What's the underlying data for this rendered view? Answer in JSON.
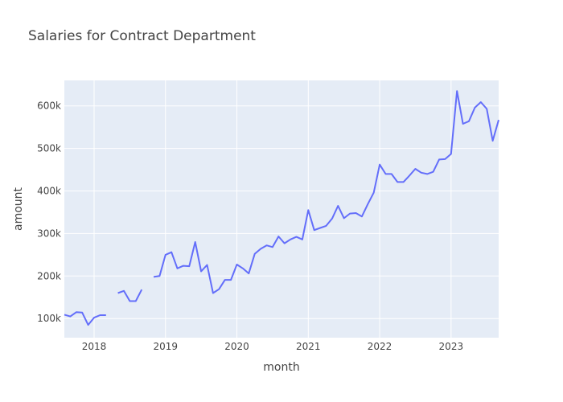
{
  "chart_data": {
    "type": "line",
    "title": "Salaries for Contract Department",
    "xlabel": "month",
    "ylabel": "amount",
    "xlim": [
      "2017-08",
      "2023-09"
    ],
    "ylim": [
      55000,
      660000
    ],
    "yticks": [
      {
        "value": 100000,
        "label": "100k"
      },
      {
        "value": 200000,
        "label": "200k"
      },
      {
        "value": 300000,
        "label": "300k"
      },
      {
        "value": 400000,
        "label": "400k"
      },
      {
        "value": 500000,
        "label": "500k"
      },
      {
        "value": 600000,
        "label": "600k"
      }
    ],
    "xticks": [
      {
        "value": "2018-01",
        "label": "2018"
      },
      {
        "value": "2019-01",
        "label": "2019"
      },
      {
        "value": "2020-01",
        "label": "2020"
      },
      {
        "value": "2021-01",
        "label": "2021"
      },
      {
        "value": "2022-01",
        "label": "2022"
      },
      {
        "value": "2023-01",
        "label": "2023"
      }
    ],
    "grid": true,
    "series": [
      {
        "color": "#636efa",
        "points": [
          [
            "2017-08",
            109000
          ],
          [
            "2017-09",
            105000
          ],
          [
            "2017-10",
            115000
          ],
          [
            "2017-11",
            114000
          ],
          [
            "2017-12",
            85000
          ],
          [
            "2018-01",
            102000
          ],
          [
            "2018-02",
            108000
          ],
          [
            "2018-03",
            108000
          ],
          [
            "2018-04",
            null
          ],
          [
            "2018-05",
            160000
          ],
          [
            "2018-06",
            165000
          ],
          [
            "2018-07",
            141000
          ],
          [
            "2018-08",
            141000
          ],
          [
            "2018-09",
            168000
          ],
          [
            "2018-10",
            null
          ],
          [
            "2018-11",
            198000
          ],
          [
            "2018-12",
            200000
          ],
          [
            "2019-01",
            250000
          ],
          [
            "2019-02",
            256000
          ],
          [
            "2019-03",
            218000
          ],
          [
            "2019-04",
            224000
          ],
          [
            "2019-05",
            223000
          ],
          [
            "2019-06",
            280000
          ],
          [
            "2019-07",
            211000
          ],
          [
            "2019-08",
            226000
          ],
          [
            "2019-09",
            160000
          ],
          [
            "2019-10",
            169000
          ],
          [
            "2019-11",
            191000
          ],
          [
            "2019-12",
            191000
          ],
          [
            "2020-01",
            227000
          ],
          [
            "2020-02",
            218000
          ],
          [
            "2020-03",
            206000
          ],
          [
            "2020-04",
            252000
          ],
          [
            "2020-05",
            264000
          ],
          [
            "2020-06",
            272000
          ],
          [
            "2020-07",
            268000
          ],
          [
            "2020-08",
            293000
          ],
          [
            "2020-09",
            277000
          ],
          [
            "2020-10",
            286000
          ],
          [
            "2020-11",
            292000
          ],
          [
            "2020-12",
            286000
          ],
          [
            "2021-01",
            355000
          ],
          [
            "2021-02",
            308000
          ],
          [
            "2021-03",
            313000
          ],
          [
            "2021-04",
            318000
          ],
          [
            "2021-05",
            335000
          ],
          [
            "2021-06",
            365000
          ],
          [
            "2021-07",
            336000
          ],
          [
            "2021-08",
            347000
          ],
          [
            "2021-09",
            348000
          ],
          [
            "2021-10",
            340000
          ],
          [
            "2021-11",
            369000
          ],
          [
            "2021-12",
            396000
          ],
          [
            "2022-01",
            462000
          ],
          [
            "2022-02",
            440000
          ],
          [
            "2022-03",
            440000
          ],
          [
            "2022-04",
            421000
          ],
          [
            "2022-05",
            421000
          ],
          [
            "2022-06",
            436000
          ],
          [
            "2022-07",
            452000
          ],
          [
            "2022-08",
            443000
          ],
          [
            "2022-09",
            440000
          ],
          [
            "2022-10",
            445000
          ],
          [
            "2022-11",
            474000
          ],
          [
            "2022-12",
            475000
          ],
          [
            "2023-01",
            487000
          ],
          [
            "2023-02",
            635000
          ],
          [
            "2023-03",
            558000
          ],
          [
            "2023-04",
            564000
          ],
          [
            "2023-05",
            596000
          ],
          [
            "2023-06",
            609000
          ],
          [
            "2023-07",
            593000
          ],
          [
            "2023-08",
            518000
          ],
          [
            "2023-09",
            567000
          ]
        ]
      }
    ]
  }
}
